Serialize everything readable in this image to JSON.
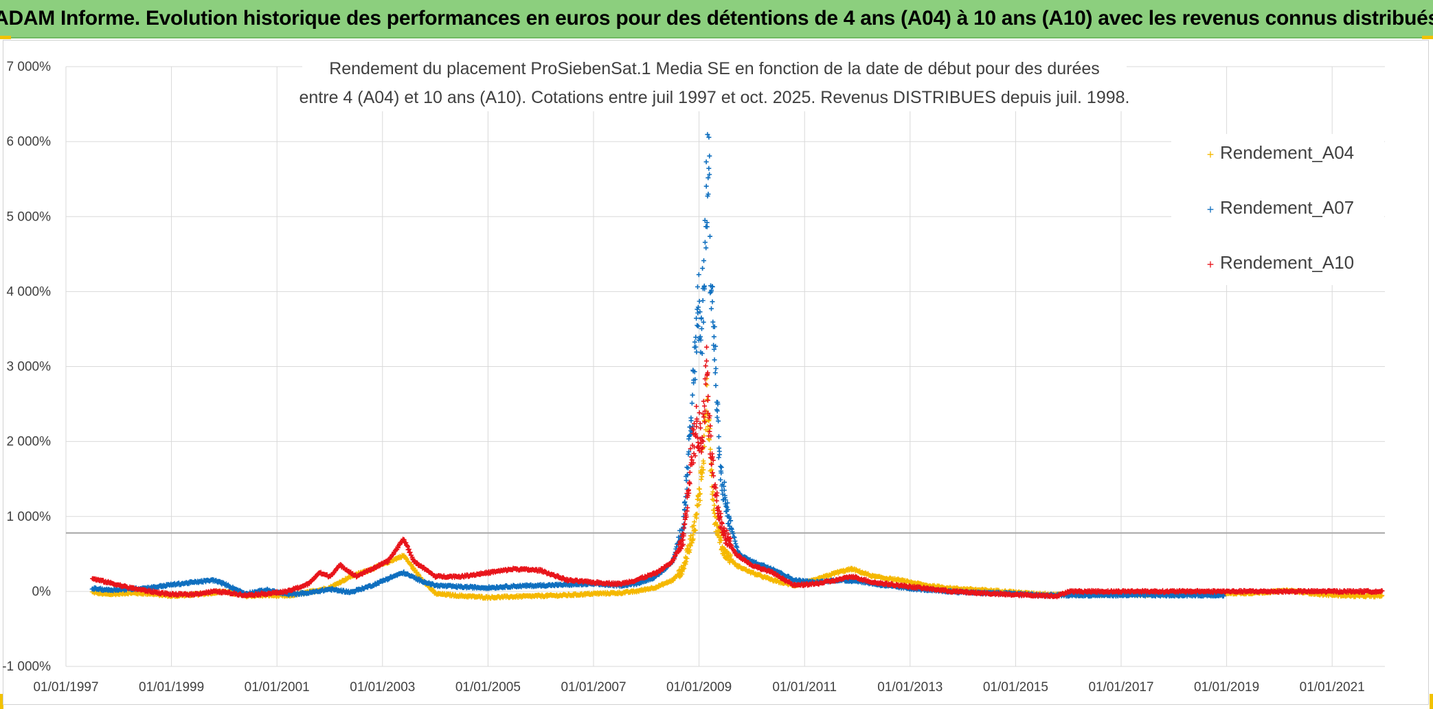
{
  "header": {
    "title": "ADAM Informe. Evolution historique des performances en euros pour des détentions de 4 ans (A04) à 10 ans (A10) avec les revenus connus distribués"
  },
  "colors": {
    "header_bg": "#8ccf7e",
    "A04": "#f5b800",
    "A07": "#0f6fbf",
    "A10": "#e8141b",
    "grid": "#d9d9d9",
    "refline": "#a6a6a6"
  },
  "chart_data": {
    "type": "scatter",
    "title_lines": [
      "Rendement du placement ProSiebenSat.1 Media SE en fonction de la date de début pour des durées",
      "entre 4 (A04) et 10 ans (A10). Cotations entre juil 1997 et oct. 2025. Revenus DISTRIBUES depuis juil. 1998."
    ],
    "xlabel": "",
    "ylabel": "",
    "ylim": [
      -1000,
      7000
    ],
    "y_ticks": [
      -1000,
      0,
      1000,
      2000,
      3000,
      4000,
      5000,
      6000,
      7000
    ],
    "y_tick_labels": [
      "-1 000%",
      "0%",
      "1 000%",
      "2 000%",
      "3 000%",
      "4 000%",
      "5 000%",
      "6 000%",
      "7 000%"
    ],
    "xlim": [
      1997.0,
      2022.0
    ],
    "x_ticks": [
      1997,
      1999,
      2001,
      2003,
      2005,
      2007,
      2009,
      2011,
      2013,
      2015,
      2017,
      2019,
      2021
    ],
    "x_tick_labels": [
      "01/01/1997",
      "01/01/1999",
      "01/01/2001",
      "01/01/2003",
      "01/01/2005",
      "01/01/2007",
      "01/01/2009",
      "01/01/2011",
      "01/01/2013",
      "01/01/2015",
      "01/01/2017",
      "01/01/2019",
      "01/01/2021"
    ],
    "reference_line": 780,
    "legend_position": "top-right",
    "marker": "+",
    "series": [
      {
        "name": "Rendement_A04",
        "color": "#f5b800",
        "x_start": 1997.5,
        "x_end": 2021.95,
        "points": [
          [
            1997.5,
            -10
          ],
          [
            1997.8,
            -40
          ],
          [
            1998.2,
            -20
          ],
          [
            1998.6,
            -30
          ],
          [
            1999.0,
            -60
          ],
          [
            1999.5,
            -40
          ],
          [
            2000.0,
            0
          ],
          [
            2000.4,
            -60
          ],
          [
            2000.8,
            -50
          ],
          [
            2001.2,
            -60
          ],
          [
            2001.6,
            -10
          ],
          [
            2002.0,
            50
          ],
          [
            2002.4,
            200
          ],
          [
            2002.8,
            300
          ],
          [
            2003.2,
            420
          ],
          [
            2003.4,
            480
          ],
          [
            2003.7,
            200
          ],
          [
            2004.0,
            -30
          ],
          [
            2004.5,
            -60
          ],
          [
            2005.0,
            -80
          ],
          [
            2005.5,
            -70
          ],
          [
            2006.0,
            -60
          ],
          [
            2006.5,
            -50
          ],
          [
            2007.0,
            -30
          ],
          [
            2007.5,
            -20
          ],
          [
            2007.8,
            0
          ],
          [
            2008.2,
            60
          ],
          [
            2008.5,
            150
          ],
          [
            2008.7,
            300
          ],
          [
            2008.85,
            700
          ],
          [
            2008.95,
            1000
          ],
          [
            2009.05,
            1600
          ],
          [
            2009.1,
            2000
          ],
          [
            2009.15,
            2600
          ],
          [
            2009.2,
            1900
          ],
          [
            2009.3,
            1000
          ],
          [
            2009.45,
            550
          ],
          [
            2009.7,
            350
          ],
          [
            2010.0,
            250
          ],
          [
            2010.4,
            150
          ],
          [
            2010.8,
            80
          ],
          [
            2011.2,
            150
          ],
          [
            2011.6,
            250
          ],
          [
            2011.9,
            300
          ],
          [
            2012.3,
            200
          ],
          [
            2012.8,
            150
          ],
          [
            2013.3,
            80
          ],
          [
            2013.8,
            40
          ],
          [
            2014.3,
            20
          ],
          [
            2014.8,
            0
          ],
          [
            2015.3,
            -30
          ],
          [
            2015.8,
            -40
          ],
          [
            2016.5,
            -40
          ],
          [
            2017.5,
            -40
          ],
          [
            2018.5,
            -30
          ],
          [
            2019.5,
            -20
          ],
          [
            2020.2,
            10
          ],
          [
            2020.8,
            -40
          ],
          [
            2021.5,
            -60
          ],
          [
            2021.95,
            -60
          ]
        ]
      },
      {
        "name": "Rendement_A07",
        "color": "#0f6fbf",
        "x_start": 1997.5,
        "x_end": 2018.95,
        "points": [
          [
            1997.5,
            40
          ],
          [
            1997.8,
            20
          ],
          [
            1998.2,
            30
          ],
          [
            1998.6,
            50
          ],
          [
            1999.0,
            90
          ],
          [
            1999.4,
            120
          ],
          [
            1999.8,
            150
          ],
          [
            2000.0,
            100
          ],
          [
            2000.4,
            -30
          ],
          [
            2000.8,
            20
          ],
          [
            2001.2,
            -40
          ],
          [
            2001.6,
            -20
          ],
          [
            2002.0,
            30
          ],
          [
            2002.4,
            -10
          ],
          [
            2002.8,
            80
          ],
          [
            2003.2,
            200
          ],
          [
            2003.4,
            250
          ],
          [
            2003.7,
            150
          ],
          [
            2004.0,
            80
          ],
          [
            2004.5,
            60
          ],
          [
            2005.0,
            50
          ],
          [
            2005.5,
            70
          ],
          [
            2006.0,
            80
          ],
          [
            2006.5,
            90
          ],
          [
            2007.0,
            100
          ],
          [
            2007.5,
            80
          ],
          [
            2007.8,
            100
          ],
          [
            2008.2,
            200
          ],
          [
            2008.5,
            400
          ],
          [
            2008.7,
            900
          ],
          [
            2008.85,
            2200
          ],
          [
            2008.95,
            3600
          ],
          [
            2009.0,
            3900
          ],
          [
            2009.05,
            3400
          ],
          [
            2009.1,
            4400
          ],
          [
            2009.15,
            5200
          ],
          [
            2009.18,
            6100
          ],
          [
            2009.22,
            4300
          ],
          [
            2009.3,
            3100
          ],
          [
            2009.4,
            1600
          ],
          [
            2009.55,
            1000
          ],
          [
            2009.75,
            500
          ],
          [
            2010.0,
            400
          ],
          [
            2010.4,
            300
          ],
          [
            2010.8,
            150
          ],
          [
            2011.2,
            120
          ],
          [
            2011.6,
            150
          ],
          [
            2012.0,
            140
          ],
          [
            2012.5,
            80
          ],
          [
            2013.0,
            40
          ],
          [
            2013.5,
            10
          ],
          [
            2014.0,
            -10
          ],
          [
            2014.5,
            -20
          ],
          [
            2015.0,
            -30
          ],
          [
            2015.5,
            -50
          ],
          [
            2016.0,
            -50
          ],
          [
            2016.8,
            -50
          ],
          [
            2017.5,
            -50
          ],
          [
            2018.3,
            -50
          ],
          [
            2018.95,
            -50
          ]
        ]
      },
      {
        "name": "Rendement_A10",
        "color": "#e8141b",
        "x_start": 1997.5,
        "x_end": 2021.95,
        "points": [
          [
            1997.5,
            170
          ],
          [
            1997.8,
            120
          ],
          [
            1998.2,
            50
          ],
          [
            1998.6,
            0
          ],
          [
            1999.0,
            -40
          ],
          [
            1999.4,
            -40
          ],
          [
            1999.8,
            0
          ],
          [
            2000.0,
            -10
          ],
          [
            2000.4,
            -50
          ],
          [
            2000.8,
            -30
          ],
          [
            2001.2,
            0
          ],
          [
            2001.6,
            100
          ],
          [
            2001.8,
            250
          ],
          [
            2002.0,
            200
          ],
          [
            2002.2,
            350
          ],
          [
            2002.5,
            200
          ],
          [
            2002.8,
            300
          ],
          [
            2003.1,
            400
          ],
          [
            2003.3,
            600
          ],
          [
            2003.4,
            700
          ],
          [
            2003.6,
            400
          ],
          [
            2004.0,
            200
          ],
          [
            2004.5,
            200
          ],
          [
            2005.0,
            250
          ],
          [
            2005.5,
            300
          ],
          [
            2006.0,
            280
          ],
          [
            2006.5,
            150
          ],
          [
            2007.0,
            120
          ],
          [
            2007.5,
            100
          ],
          [
            2007.8,
            150
          ],
          [
            2008.2,
            250
          ],
          [
            2008.5,
            400
          ],
          [
            2008.7,
            700
          ],
          [
            2008.85,
            1800
          ],
          [
            2008.95,
            2200
          ],
          [
            2009.05,
            2000
          ],
          [
            2009.1,
            2400
          ],
          [
            2009.15,
            3200
          ],
          [
            2009.2,
            2100
          ],
          [
            2009.3,
            1300
          ],
          [
            2009.45,
            800
          ],
          [
            2009.7,
            500
          ],
          [
            2010.0,
            350
          ],
          [
            2010.4,
            250
          ],
          [
            2010.8,
            80
          ],
          [
            2011.2,
            100
          ],
          [
            2011.6,
            150
          ],
          [
            2011.9,
            200
          ],
          [
            2012.3,
            120
          ],
          [
            2012.8,
            80
          ],
          [
            2013.3,
            40
          ],
          [
            2013.8,
            0
          ],
          [
            2014.3,
            -20
          ],
          [
            2014.8,
            -40
          ],
          [
            2015.3,
            -50
          ],
          [
            2015.8,
            -60
          ],
          [
            2016.0,
            0
          ],
          [
            2017.0,
            0
          ],
          [
            2018.5,
            0
          ],
          [
            2020.0,
            0
          ],
          [
            2021.0,
            0
          ],
          [
            2021.95,
            0
          ]
        ]
      }
    ]
  }
}
